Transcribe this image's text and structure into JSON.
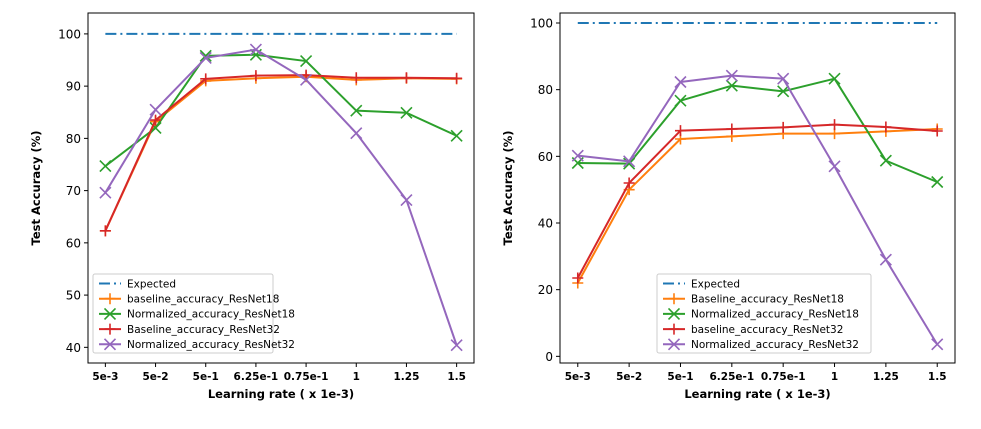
{
  "chart_data": [
    {
      "type": "line",
      "title": "",
      "xlabel": "Learning rate ( x 1e-3)",
      "ylabel": "Test Accuracy (%)",
      "categories": [
        "5e-3",
        "5e-2",
        "5e-1",
        "6.25e-1",
        "0.75e-1",
        "1",
        "1.25",
        "1.5"
      ],
      "ylim": [
        37,
        104
      ],
      "yticks": [
        40,
        50,
        60,
        70,
        80,
        90,
        100
      ],
      "grid": false,
      "legend_position": "lower-left",
      "series": [
        {
          "name": "Expected",
          "color": "#1f77b4",
          "style": "dashdot",
          "marker": "none",
          "values": [
            100,
            100,
            100,
            100,
            100,
            100,
            100,
            100
          ]
        },
        {
          "name": "baseline_accuracy_ResNet18",
          "color": "#ff7f0e",
          "style": "solid",
          "marker": "plus",
          "values": [
            62.3,
            83.2,
            91.0,
            91.5,
            91.8,
            91.2,
            91.5,
            91.4
          ]
        },
        {
          "name": "Normalized_accuracy_ResNet18",
          "color": "#2ca02c",
          "style": "solid",
          "marker": "x",
          "values": [
            74.7,
            82.0,
            95.8,
            96.0,
            94.8,
            85.3,
            84.9,
            80.5
          ]
        },
        {
          "name": "Baseline_accuracy_ResNet32",
          "color": "#d62728",
          "style": "solid",
          "marker": "plus",
          "values": [
            62.3,
            83.5,
            91.4,
            92.0,
            92.1,
            91.6,
            91.6,
            91.5
          ]
        },
        {
          "name": "Normalized_accuracy_ResNet32",
          "color": "#9467bd",
          "style": "solid",
          "marker": "x",
          "values": [
            69.6,
            85.5,
            95.4,
            97.0,
            91.2,
            81.0,
            68.2,
            40.4
          ]
        }
      ]
    },
    {
      "type": "line",
      "title": "",
      "xlabel": "Learning rate ( x 1e-3)",
      "ylabel": "Test Accuracy (%)",
      "categories": [
        "5e-3",
        "5e-2",
        "5e-1",
        "6.25e-1",
        "0.75e-1",
        "1",
        "1.25",
        "1.5"
      ],
      "ylim": [
        -2,
        103
      ],
      "yticks": [
        0,
        20,
        40,
        60,
        80,
        100
      ],
      "grid": false,
      "legend_position": "lower-left",
      "series": [
        {
          "name": "Expected",
          "color": "#1f77b4",
          "style": "dashdot",
          "marker": "none",
          "values": [
            100,
            100,
            100,
            100,
            100,
            100,
            100,
            100
          ]
        },
        {
          "name": "Baseline_accuracy_ResNet18",
          "color": "#ff7f0e",
          "style": "solid",
          "marker": "plus",
          "values": [
            22.0,
            50.0,
            65.2,
            66.0,
            66.8,
            66.8,
            67.5,
            68.2
          ]
        },
        {
          "name": "Normalized_accuracy_ResNet18",
          "color": "#2ca02c",
          "style": "solid",
          "marker": "x",
          "values": [
            58.0,
            57.8,
            76.7,
            81.2,
            79.5,
            83.3,
            58.7,
            52.3
          ]
        },
        {
          "name": "baseline_accuracy_ResNet32",
          "color": "#d62728",
          "style": "solid",
          "marker": "plus",
          "values": [
            23.5,
            52.0,
            67.7,
            68.2,
            68.7,
            69.5,
            68.8,
            67.6
          ]
        },
        {
          "name": "Normalized_accuracy_ResNet32",
          "color": "#9467bd",
          "style": "solid",
          "marker": "x",
          "values": [
            60.2,
            58.5,
            82.3,
            84.2,
            83.3,
            57.0,
            29.0,
            3.6
          ]
        }
      ]
    }
  ]
}
